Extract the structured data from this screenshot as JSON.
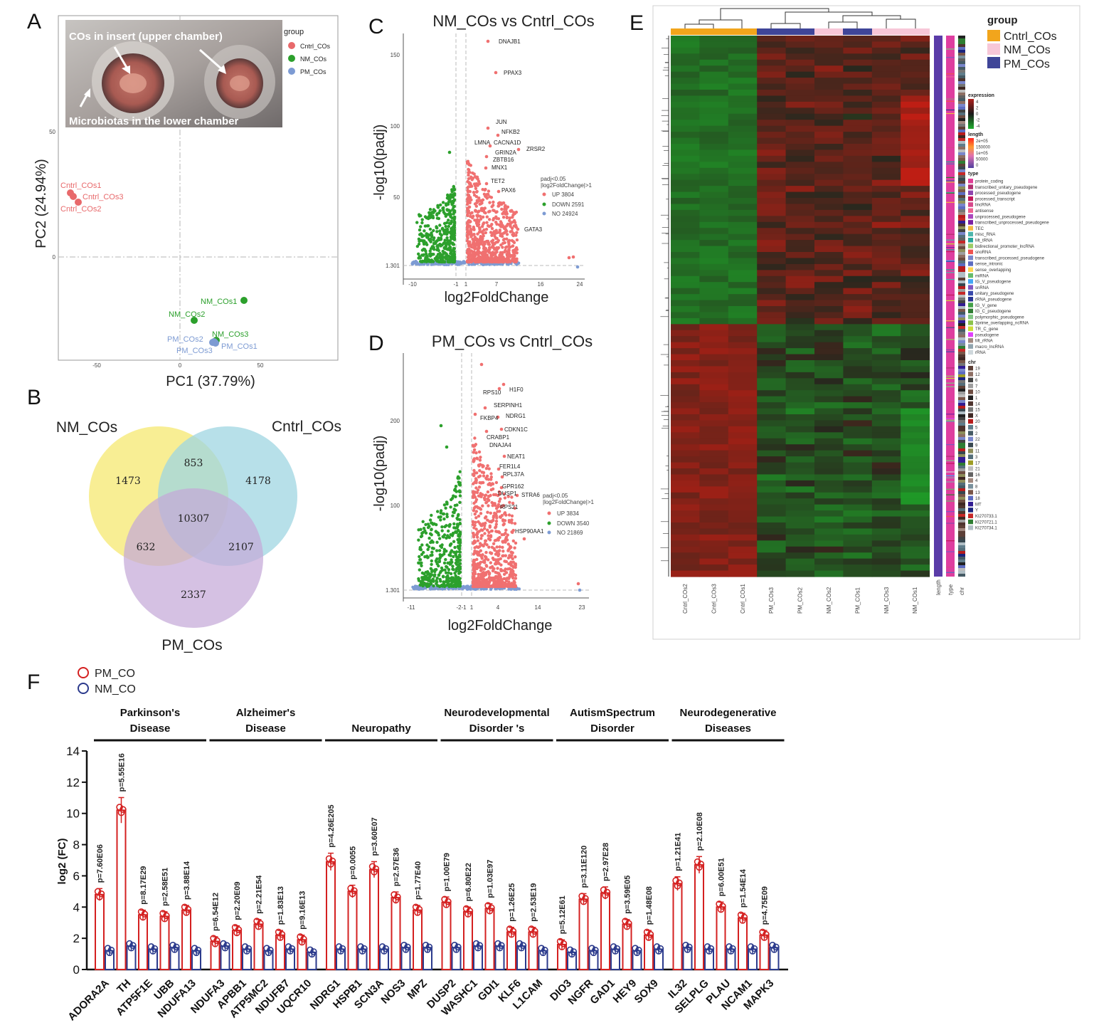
{
  "panels": {
    "a": "A",
    "b": "B",
    "c": "C",
    "d": "D",
    "e": "E",
    "f": "F"
  },
  "pca": {
    "xlabel": "PC1 (37.79%)",
    "ylabel": "PC2 (24.94%)",
    "legend_title": "group",
    "legend": [
      "Cntrl_COs",
      "NM_COs",
      "PM_COs"
    ],
    "inset_top": "COs in insert (upper chamber)",
    "inset_bottom": "Microbiotas in the lower chamber",
    "xticks": [
      "-50",
      "0",
      "50"
    ],
    "yticks": [
      "50",
      "0"
    ],
    "colors": {
      "Cntrl_COs": "#e8696b",
      "NM_COs": "#2ca02c",
      "PM_COs": "#7d9bd3"
    }
  },
  "venn": {
    "labels": [
      "NM_COs",
      "Cntrl_COs",
      "PM_COs"
    ],
    "values": {
      "nm_only": "1473",
      "cntrl_only": "4178",
      "pm_only": "2337",
      "nm_cntrl": "853",
      "nm_pm": "632",
      "cntrl_pm": "2107",
      "all": "10307"
    }
  },
  "volcano_c": {
    "title": "NM_COs vs Cntrl_COs",
    "xlabel": "log2FoldChange",
    "ylabel": "-log10(padj)",
    "xticks": [
      "-10",
      "-1",
      "1",
      "7",
      "16",
      "24"
    ],
    "yticks": [
      "150",
      "100",
      "50",
      "1.301"
    ],
    "legend_title_1": "padj<0.05",
    "legend_title_2": "|log2FoldChange|>1",
    "legend": [
      "UP 3804",
      "DOWN 2591",
      "NO 24924"
    ],
    "genes": [
      "DNAJB1",
      "PPAX3",
      "JUN",
      "NFKB2",
      "LMNA",
      "CACNA1D",
      "ZRSR2",
      "GRIN2A",
      "ZBTB16",
      "MNX1",
      "TET2",
      "PAX6",
      "GATA3"
    ]
  },
  "volcano_d": {
    "title": "PM_COs vs Cntrl_COs",
    "xlabel": "log2FoldChange",
    "ylabel": "-log10(padj)",
    "xticks": [
      "-11",
      "-2",
      "-1",
      "1",
      "4",
      "14",
      "23"
    ],
    "yticks": [
      "200",
      "100",
      "1.301"
    ],
    "legend_title_1": "padj<0.05",
    "legend_title_2": "|log2FoldChange|>1",
    "legend": [
      "UP 3834",
      "DOWN 3540",
      "NO 21869"
    ],
    "genes": [
      "RPS10",
      "H1F0",
      "SERPINH1",
      "FKBP4",
      "NDRG1",
      "CDKN1C",
      "CRABP1",
      "DNAJA4",
      "NEAT1",
      "FER1L4",
      "RPL37A",
      "GPR162",
      "DUSP1",
      "STRA6",
      "RPS21",
      "HSP90AA1"
    ]
  },
  "heatmap": {
    "legend_group_title": "group",
    "groups": [
      "Cntrl_COs",
      "NM_COs",
      "PM_COs"
    ],
    "group_colors": [
      "#f2a51c",
      "#f7c7d8",
      "#3f4598"
    ],
    "columns": [
      "Cntrl_COs2",
      "Cntrl_COs3",
      "Cntrl_COs1",
      "PM_COs3",
      "PM_COs2",
      "NM_COs2",
      "PM_COs1",
      "NM_COs3",
      "NM_COs1"
    ],
    "annotation_cols": [
      "length",
      "type",
      "chr"
    ],
    "expression_title": "expression",
    "expression_ticks": [
      "4",
      "2",
      "0",
      "-2",
      "-4"
    ],
    "length_title": "length",
    "length_ticks": [
      "2e+05",
      "150000",
      "1e+05",
      "50000",
      "0"
    ],
    "type_title": "type",
    "types": [
      "protein_coding",
      "transcribed_unitary_pseudogene",
      "processed_pseudogene",
      "processed_transcript",
      "lincRNA",
      "antisense",
      "unprocessed_pseudogene",
      "transcribed_unprocessed_pseudogene",
      "TEC",
      "misc_RNA",
      "Mt_tRNA",
      "bidirectional_promoter_lncRNA",
      "snoRNA",
      "transcribed_processed_pseudogene",
      "sense_intronic",
      "sense_overlapping",
      "miRNA",
      "IG_V_pseudogene",
      "snRNA",
      "unitary_pseudogene",
      "rRNA_pseudogene",
      "IG_V_gene",
      "IG_C_pseudogene",
      "polymorphic_pseudogene",
      "3prime_overlapping_ncRNA",
      "TR_C_gene",
      "pseudogene",
      "Mt_rRNA",
      "macro_lncRNA",
      "rRNA"
    ],
    "type_colors": [
      "#e03e96",
      "#b0306f",
      "#8e44ad",
      "#c2185b",
      "#d6478a",
      "#f06292",
      "#ab47bc",
      "#7b1fa2",
      "#f4b942",
      "#4db6ac",
      "#26a69a",
      "#9ccc65",
      "#ef5350",
      "#7986cb",
      "#5c6bc0",
      "#ffd54f",
      "#66bb6a",
      "#42a5f5",
      "#7e57c2",
      "#3949ab",
      "#283593",
      "#43a047",
      "#2e7d32",
      "#81c784",
      "#8bc34a",
      "#cddc39",
      "#e040fb",
      "#a1887f",
      "#90a4ae",
      "#cfd8dc"
    ],
    "chr_title": "chr",
    "chrs": [
      "19",
      "12",
      "6",
      "7",
      "10",
      "1",
      "14",
      "15",
      "X",
      "20",
      "5",
      "2",
      "22",
      "9",
      "11",
      "3",
      "17",
      "21",
      "16",
      "4",
      "8",
      "13",
      "18",
      "MT",
      "Y",
      "KI270733.1",
      "KI270721.1",
      "KI270734.1"
    ],
    "chr_colors": [
      "#5d4037",
      "#8d6e63",
      "#424242",
      "#9e9e9e",
      "#6d4c41",
      "#212121",
      "#4e342e",
      "#757575",
      "#3e2723",
      "#b71c1c",
      "#607d8b",
      "#455a64",
      "#7986cb",
      "#37474f",
      "#8d8d5a",
      "#546e7a",
      "#9e9d24",
      "#bdbdbd",
      "#616161",
      "#a1887f",
      "#78909c",
      "#795548",
      "#5c6bc0",
      "#311b92",
      "#1a237e",
      "#c62828",
      "#2e7d32",
      "#b0bec5"
    ]
  },
  "chart_data": {
    "type": "bar",
    "ylabel": "log2 (FC)",
    "ylim": [
      0,
      14
    ],
    "yticks": [
      "0",
      "2",
      "4",
      "6",
      "8",
      "10",
      "12",
      "14"
    ],
    "legend": [
      "PM_CO",
      "NM_CO"
    ],
    "series_colors": {
      "PM_CO": "#d42020",
      "NM_CO": "#2b3a8c"
    },
    "groups": [
      {
        "label_1": "Parkinson's",
        "label_2": "Disease"
      },
      {
        "label_1": "Alzheimer's",
        "label_2": "Disease"
      },
      {
        "label_1": "Neuropathy",
        "label_2": ""
      },
      {
        "label_1": "Neurodevelopmental",
        "label_2": "Disorder 's"
      },
      {
        "label_1": "AutismSpectrum",
        "label_2": "Disorder"
      },
      {
        "label_1": "Neurodegenerative",
        "label_2": "Diseases"
      }
    ],
    "categories": [
      "ADORA2A",
      "TH",
      "ATP5F1E",
      "UBB",
      "NDUFA13",
      "NDUFA3",
      "APBB1",
      "ATP5MC2",
      "NDUFB7",
      "UQCR10",
      "NDRG1",
      "HSPB1",
      "SCN3A",
      "NOS3",
      "MPZ",
      "DUSP2",
      "WASHC1",
      "GDI1",
      "KLF6",
      "L1CAM",
      "DIO3",
      "NGFR",
      "GAD1",
      "HEY9",
      "SOX9",
      "IL32",
      "SELPLG",
      "PLAU",
      "NCAM1",
      "MAPK3"
    ],
    "pm_values": [
      4.8,
      10.2,
      3.5,
      3.4,
      3.8,
      1.8,
      2.5,
      2.9,
      2.2,
      1.9,
      6.9,
      5.0,
      6.4,
      4.6,
      3.8,
      4.3,
      3.7,
      3.9,
      2.4,
      2.4,
      1.6,
      4.5,
      4.9,
      2.9,
      2.2,
      5.5,
      6.7,
      4.0,
      3.3,
      2.2
    ],
    "nm_values": [
      1.2,
      1.5,
      1.3,
      1.4,
      1.2,
      1.5,
      1.3,
      1.2,
      1.3,
      1.1,
      1.3,
      1.3,
      1.3,
      1.4,
      1.4,
      1.4,
      1.5,
      1.5,
      1.5,
      1.2,
      1.1,
      1.2,
      1.3,
      1.2,
      1.3,
      1.4,
      1.3,
      1.3,
      1.3,
      1.4
    ],
    "pvalues": [
      "p=7.60E06",
      "p=5.55E16",
      "p=8.17E29",
      "p=2.58E51",
      "p=3.88E14",
      "p=6.54E12",
      "p=2.20E09",
      "p=2.21E54",
      "p=1.83E13",
      "p=9.16E13",
      "p=4.26E205",
      "p=0.0055",
      "p=3.60E07",
      "p=2.57E36",
      "p=1.77E40",
      "p=1.00E79",
      "p=6.80E22",
      "p=1.03E97",
      "p=1.26E25",
      "p=2.53E19",
      "p=5.12E61",
      "p=3.11E120",
      "p=2.97E28",
      "p=3.59E05",
      "p=1.48E08",
      "p=1.21E41",
      "p=2.10E08",
      "p=6.00E51",
      "p=1.54E14",
      "p=4.75E09"
    ]
  }
}
